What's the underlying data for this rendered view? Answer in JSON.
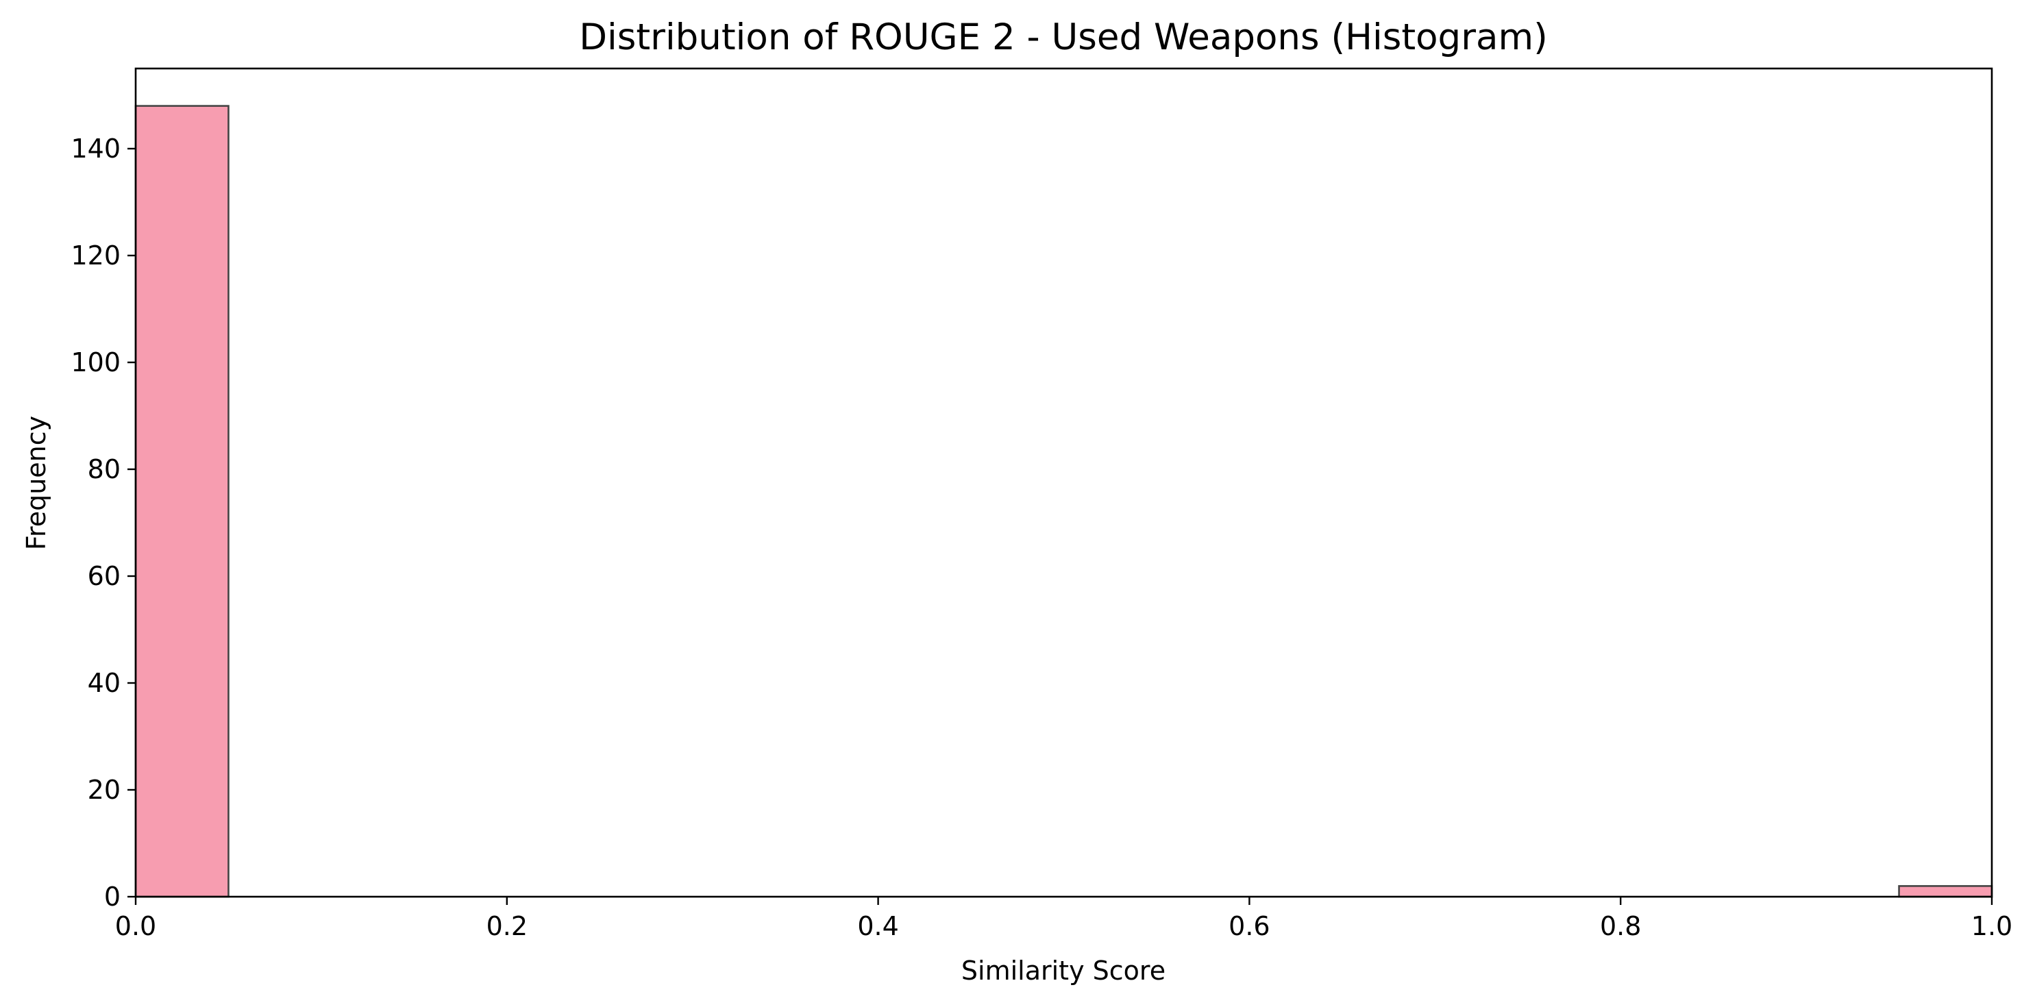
{
  "chart_data": {
    "type": "bar",
    "title": "Distribution of ROUGE 2 - Used Weapons (Histogram)",
    "xlabel": "Similarity Score",
    "ylabel": "Frequency",
    "xlim": [
      0.0,
      1.0
    ],
    "ylim": [
      0,
      155
    ],
    "x_ticks": [
      0.0,
      0.2,
      0.4,
      0.6,
      0.8,
      1.0
    ],
    "x_tick_labels": [
      "0.0",
      "0.2",
      "0.4",
      "0.6",
      "0.8",
      "1.0"
    ],
    "y_ticks": [
      0,
      20,
      40,
      60,
      80,
      100,
      120,
      140
    ],
    "y_tick_labels": [
      "0",
      "20",
      "40",
      "60",
      "80",
      "100",
      "120",
      "140"
    ],
    "grid": false,
    "bar_color": "#f79db0",
    "bar_edge_color": "#444444",
    "bins": [
      {
        "x_start": 0.0,
        "x_end": 0.05,
        "count": 148
      },
      {
        "x_start": 0.05,
        "x_end": 0.1,
        "count": 0
      },
      {
        "x_start": 0.1,
        "x_end": 0.15,
        "count": 0
      },
      {
        "x_start": 0.15,
        "x_end": 0.2,
        "count": 0
      },
      {
        "x_start": 0.2,
        "x_end": 0.25,
        "count": 0
      },
      {
        "x_start": 0.25,
        "x_end": 0.3,
        "count": 0
      },
      {
        "x_start": 0.3,
        "x_end": 0.35,
        "count": 0
      },
      {
        "x_start": 0.35,
        "x_end": 0.4,
        "count": 0
      },
      {
        "x_start": 0.4,
        "x_end": 0.45,
        "count": 0
      },
      {
        "x_start": 0.45,
        "x_end": 0.5,
        "count": 0
      },
      {
        "x_start": 0.5,
        "x_end": 0.55,
        "count": 0
      },
      {
        "x_start": 0.55,
        "x_end": 0.6,
        "count": 0
      },
      {
        "x_start": 0.6,
        "x_end": 0.65,
        "count": 0
      },
      {
        "x_start": 0.65,
        "x_end": 0.7,
        "count": 0
      },
      {
        "x_start": 0.7,
        "x_end": 0.75,
        "count": 0
      },
      {
        "x_start": 0.75,
        "x_end": 0.8,
        "count": 0
      },
      {
        "x_start": 0.8,
        "x_end": 0.85,
        "count": 0
      },
      {
        "x_start": 0.85,
        "x_end": 0.9,
        "count": 0
      },
      {
        "x_start": 0.9,
        "x_end": 0.95,
        "count": 0
      },
      {
        "x_start": 0.95,
        "x_end": 1.0,
        "count": 2
      }
    ]
  }
}
